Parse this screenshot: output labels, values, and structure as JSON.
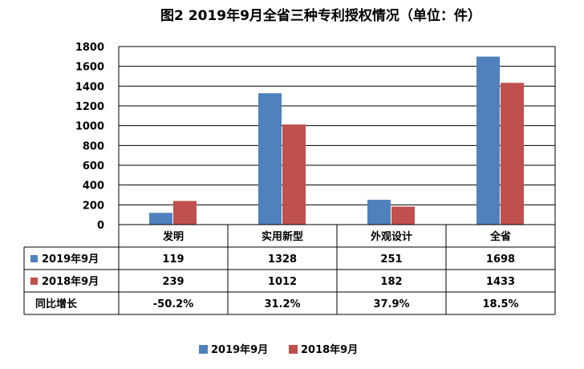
{
  "chart_data": {
    "type": "bar",
    "title": "图2 2019年9月全省三种专利授权情况（单位：件）",
    "categories": [
      "发明",
      "实用新型",
      "外观设计",
      "全省"
    ],
    "series": [
      {
        "name": "2019年9月",
        "values": [
          119,
          1328,
          251,
          1698
        ],
        "color": "#4f81bd",
        "table_values": [
          "119",
          "1328",
          "251",
          "1698"
        ]
      },
      {
        "name": "2018年9月",
        "values": [
          239,
          1012,
          182,
          1433
        ],
        "color": "#c0504d",
        "table_values": [
          "239",
          "1012",
          "182",
          "1433"
        ]
      }
    ],
    "extra_rows": [
      {
        "name": "同比增长",
        "values": [
          "-50.2%",
          "31.2%",
          "37.9%",
          "18.5%"
        ]
      }
    ],
    "ylim": [
      0,
      1800
    ],
    "yticks": [
      0,
      200,
      400,
      600,
      800,
      1000,
      1200,
      1400,
      1600,
      1800
    ],
    "grid": true,
    "legend_position": "bottom"
  }
}
